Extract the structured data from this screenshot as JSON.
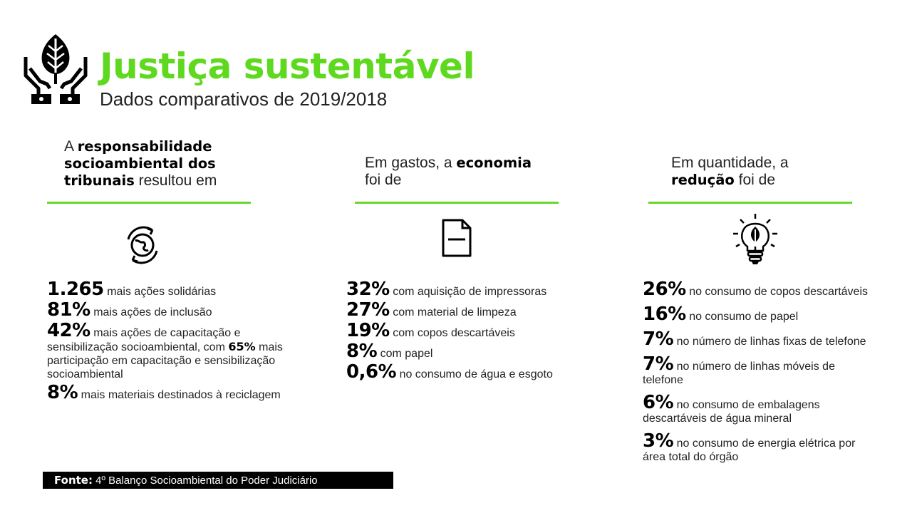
{
  "header": {
    "title": "Justiça sustentável",
    "subtitle": "Dados comparativos de 2019/2018"
  },
  "columns": [
    {
      "intro": [
        {
          "t": "A ",
          "b": false
        },
        {
          "t": "responsabilidade",
          "b": true,
          "br": true
        },
        {
          "t": "socioambiental dos",
          "b": true,
          "br": true
        },
        {
          "t": "tribunais",
          "b": true
        },
        {
          "t": " resultou em",
          "b": false
        }
      ],
      "icon": "recycle-globe-icon",
      "items": [
        {
          "pct": "1.265",
          "text": "mais ações solidárias"
        },
        {
          "pct": "81%",
          "text": "mais ações de inclusão"
        },
        {
          "pct": "42%",
          "text": "mais ações de capacitação e sensibilização socioambiental, com",
          "bold": "65%",
          "text2": "mais participação em capacitação e sensibilização socioambiental"
        },
        {
          "pct": "8%",
          "text": "mais materiais destinados à reciclagem"
        }
      ]
    },
    {
      "intro": [
        {
          "t": "Em gastos, a ",
          "b": false
        },
        {
          "t": "economia",
          "b": true,
          "br": true
        },
        {
          "t": "foi de",
          "b": false
        }
      ],
      "icon": "document-icon",
      "items": [
        {
          "pct": "32%",
          "text": "com aquisição de impressoras"
        },
        {
          "pct": "27%",
          "text": "com material de limpeza"
        },
        {
          "pct": "19%",
          "text": "com copos descartáveis"
        },
        {
          "pct": "8%",
          "text": "com papel"
        },
        {
          "pct": "0,6%",
          "text": "no consumo de água e esgoto"
        }
      ]
    },
    {
      "intro": [
        {
          "t": "Em quantidade, a",
          "b": false,
          "br": true
        },
        {
          "t": "redução",
          "b": true
        },
        {
          "t": " foi de",
          "b": false
        }
      ],
      "icon": "eco-lightbulb-icon",
      "items": [
        {
          "pct": "26%",
          "text": "no consumo de copos descartáveis"
        },
        {
          "pct": "16%",
          "text": "no consumo de papel"
        },
        {
          "pct": "7%",
          "text": "no número de linhas fixas de telefone"
        },
        {
          "pct": "7%",
          "text": "no número de linhas móveis de telefone"
        },
        {
          "pct": "6%",
          "text": "no consumo de embalagens descartáveis de água mineral"
        },
        {
          "pct": "3%",
          "text": "no consumo de energia elétrica por área total do órgão"
        }
      ]
    }
  ],
  "footer": {
    "source_label": "Fonte:",
    "source_text": "4º Balanço Socioambiental do Poder Judiciário"
  },
  "colors": {
    "accent": "#5fd91f",
    "rule": "#66d92a",
    "text": "#111111",
    "footer_bg": "#000000"
  },
  "logo": "hands-leaf-logo"
}
